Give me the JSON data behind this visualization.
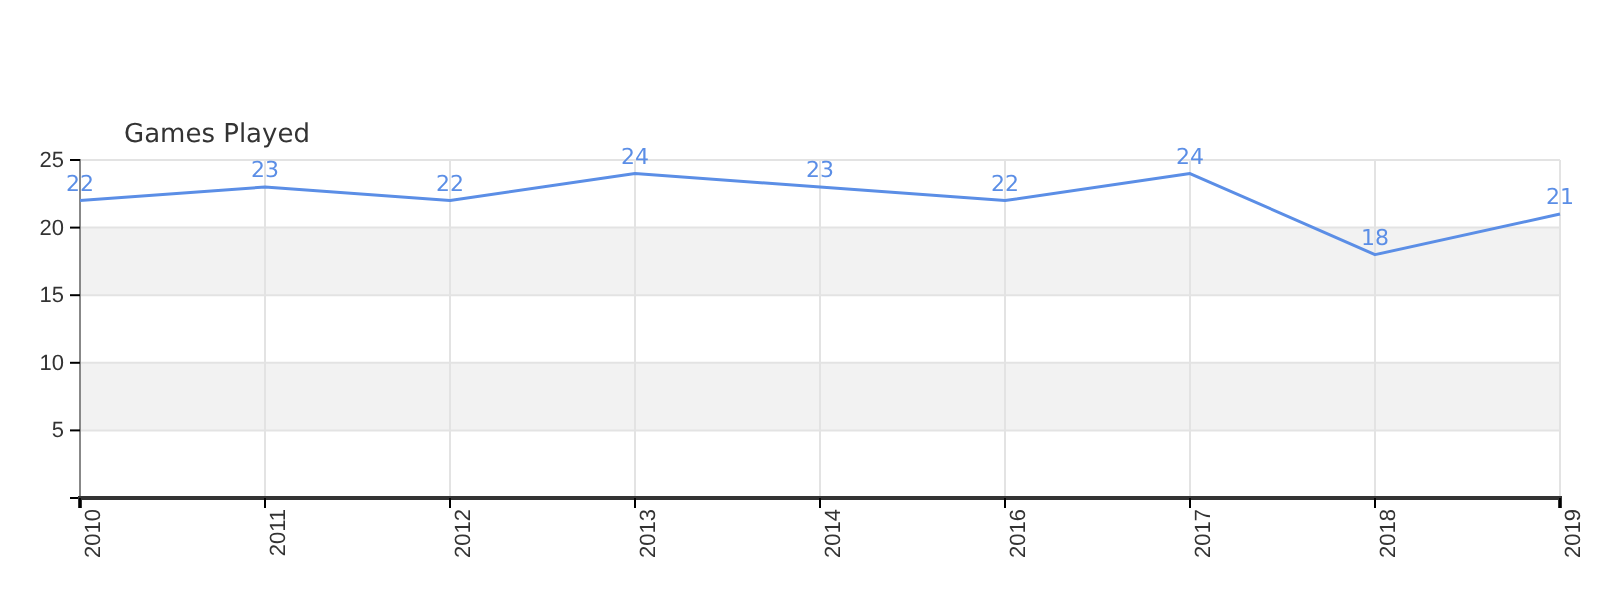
{
  "chart_data": {
    "type": "line",
    "title": "Games Played",
    "categories": [
      "2010",
      "2011",
      "2012",
      "2013",
      "2014",
      "2016",
      "2017",
      "2018",
      "2019"
    ],
    "series": [
      {
        "color": "#5b8ee6",
        "values": [
          22,
          23,
          22,
          24,
          23,
          22,
          24,
          18,
          21
        ]
      }
    ],
    "ylim": [
      0,
      25
    ],
    "yticks": [
      {
        "value": 0,
        "label": null
      },
      5,
      10,
      15,
      20,
      25
    ],
    "bands": [
      {
        "axis": "y",
        "from": 5,
        "to": 10,
        "color": "#f2f2f2"
      },
      {
        "axis": "y",
        "from": 15,
        "to": 20,
        "color": "#f2f2f2"
      }
    ],
    "grid": true,
    "data_labels": true,
    "marker": "none",
    "line_style": "solid"
  }
}
